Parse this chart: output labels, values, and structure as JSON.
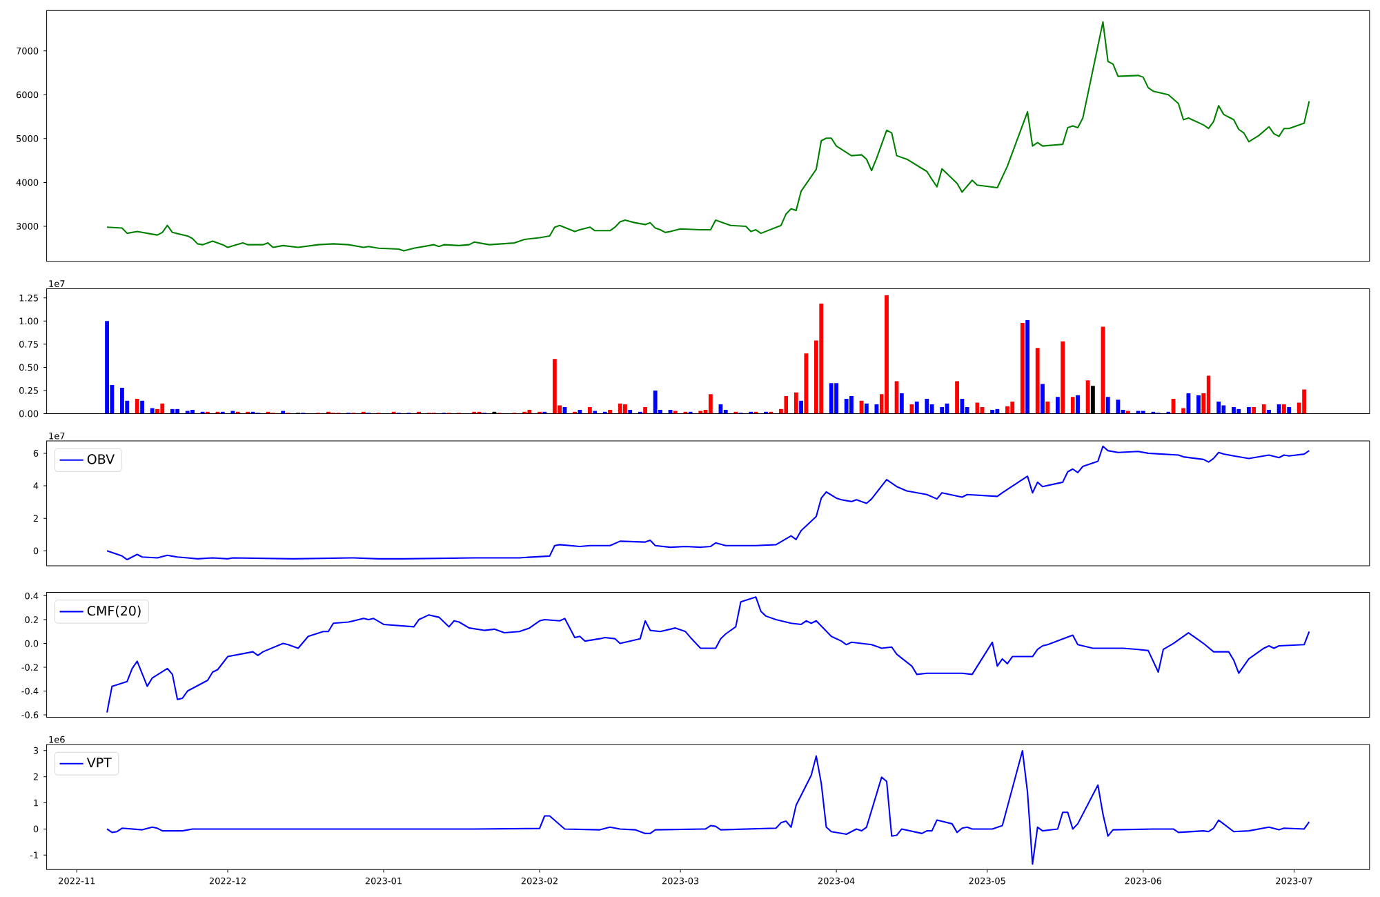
{
  "chart_data": [
    {
      "type": "line",
      "color": "#008000",
      "xlim": [
        "2022-10-26",
        "2023-07-16"
      ],
      "ylim": [
        2200,
        7920
      ],
      "yticks": [
        3000,
        4000,
        5000,
        6000,
        7000
      ],
      "tick_labels": "y",
      "x": [
        "2022-11-07",
        "2022-11-10",
        "2022-11-11",
        "2022-11-13",
        "2022-11-16",
        "2022-11-17",
        "2022-11-18",
        "2022-11-19",
        "2022-11-20",
        "2022-11-23",
        "2022-11-24",
        "2022-11-25",
        "2022-11-26",
        "2022-11-28",
        "2022-11-30",
        "2022-12-01",
        "2022-12-04",
        "2022-12-05",
        "2022-12-08",
        "2022-12-09",
        "2022-12-10",
        "2022-12-12",
        "2022-12-15",
        "2022-12-19",
        "2022-12-22",
        "2022-12-25",
        "2022-12-28",
        "2022-12-29",
        "2022-12-31",
        "2023-01-04",
        "2023-01-05",
        "2023-01-07",
        "2023-01-11",
        "2023-01-12",
        "2023-01-13",
        "2023-01-16",
        "2023-01-18",
        "2023-01-19",
        "2023-01-21",
        "2023-01-22",
        "2023-01-27",
        "2023-01-29",
        "2023-02-01",
        "2023-02-02",
        "2023-02-03",
        "2023-02-04",
        "2023-02-05",
        "2023-02-08",
        "2023-02-09",
        "2023-02-11",
        "2023-02-12",
        "2023-02-15",
        "2023-02-16",
        "2023-02-17",
        "2023-02-18",
        "2023-02-20",
        "2023-02-22",
        "2023-02-23",
        "2023-02-24",
        "2023-02-25",
        "2023-02-26",
        "2023-02-27",
        "2023-03-01",
        "2023-03-05",
        "2023-03-07",
        "2023-03-08",
        "2023-03-10",
        "2023-03-11",
        "2023-03-14",
        "2023-03-15",
        "2023-03-16",
        "2023-03-17",
        "2023-03-21",
        "2023-03-22",
        "2023-03-23",
        "2023-03-24",
        "2023-03-25",
        "2023-03-28",
        "2023-03-29",
        "2023-03-30",
        "2023-03-31",
        "2023-04-01",
        "2023-04-04",
        "2023-04-06",
        "2023-04-07",
        "2023-04-08",
        "2023-04-09",
        "2023-04-11",
        "2023-04-12",
        "2023-04-13",
        "2023-04-15",
        "2023-04-19",
        "2023-04-20",
        "2023-04-21",
        "2023-04-22",
        "2023-04-25",
        "2023-04-26",
        "2023-04-28",
        "2023-04-29",
        "2023-05-03",
        "2023-05-05",
        "2023-05-09",
        "2023-05-10",
        "2023-05-11",
        "2023-05-12",
        "2023-05-16",
        "2023-05-17",
        "2023-05-18",
        "2023-05-19",
        "2023-05-20",
        "2023-05-24",
        "2023-05-25",
        "2023-05-26",
        "2023-05-27",
        "2023-05-31",
        "2023-06-01",
        "2023-06-02",
        "2023-06-03",
        "2023-06-06",
        "2023-06-08",
        "2023-06-09",
        "2023-06-10",
        "2023-06-13",
        "2023-06-14",
        "2023-06-15",
        "2023-06-16",
        "2023-06-17",
        "2023-06-19",
        "2023-06-20",
        "2023-06-21",
        "2023-06-22",
        "2023-06-24",
        "2023-06-26",
        "2023-06-27",
        "2023-06-28",
        "2023-06-29",
        "2023-06-30",
        "2023-07-03",
        "2023-07-04"
      ],
      "values": [
        2980,
        2960,
        2840,
        2880,
        2820,
        2800,
        2860,
        3020,
        2860,
        2780,
        2720,
        2600,
        2580,
        2660,
        2580,
        2520,
        2620,
        2580,
        2580,
        2620,
        2520,
        2560,
        2520,
        2580,
        2600,
        2580,
        2520,
        2540,
        2500,
        2480,
        2440,
        2500,
        2580,
        2540,
        2580,
        2560,
        2580,
        2640,
        2600,
        2580,
        2620,
        2700,
        2740,
        2760,
        2780,
        2980,
        3020,
        2880,
        2920,
        2980,
        2900,
        2900,
        2980,
        3100,
        3140,
        3080,
        3040,
        3080,
        2960,
        2920,
        2860,
        2880,
        2940,
        2920,
        2920,
        3140,
        3060,
        3020,
        3000,
        2880,
        2920,
        2840,
        3020,
        3280,
        3400,
        3360,
        3800,
        4300,
        4950,
        5010,
        5010,
        4830,
        4610,
        4630,
        4530,
        4270,
        4550,
        5190,
        5130,
        4610,
        4530,
        4250,
        4070,
        3900,
        4310,
        3980,
        3780,
        4050,
        3940,
        3880,
        4370,
        5610,
        4830,
        4910,
        4830,
        4870,
        5250,
        5290,
        5250,
        5470,
        7660,
        6760,
        6700,
        6420,
        6440,
        6400,
        6160,
        6080,
        6000,
        5800,
        5430,
        5470,
        5310,
        5230,
        5390,
        5750,
        5550,
        5430,
        5210,
        5130,
        4930,
        5070,
        5270,
        5110,
        5050,
        5230,
        5230,
        5350,
        5850
      ]
    },
    {
      "type": "bar",
      "xlim": [
        "2022-10-26",
        "2023-07-16"
      ],
      "ylim": [
        0,
        1.35
      ],
      "tick_labels": "y",
      "annotations": [
        "1e7"
      ],
      "yticks": [
        {
          "value": 0,
          "label": "0.00"
        },
        0.25,
        {
          "value": 0.5,
          "label": "0.50"
        },
        0.75,
        {
          "value": 1,
          "label": "1.00"
        },
        1.25
      ],
      "x": [
        "2022-11-07",
        "2022-11-08",
        "2022-11-10",
        "2022-11-11",
        "2022-11-13",
        "2022-11-14",
        "2022-11-16",
        "2022-11-17",
        "2022-11-18",
        "2022-11-20",
        "2022-11-21",
        "2022-11-23",
        "2022-11-24",
        "2022-11-26",
        "2022-11-27",
        "2022-11-29",
        "2022-11-30",
        "2022-12-02",
        "2022-12-03",
        "2022-12-05",
        "2022-12-06",
        "2022-12-07",
        "2022-12-09",
        "2022-12-10",
        "2022-12-12",
        "2022-12-13",
        "2022-12-15",
        "2022-12-16",
        "2022-12-19",
        "2022-12-21",
        "2022-12-22",
        "2022-12-23",
        "2022-12-25",
        "2022-12-26",
        "2022-12-28",
        "2022-12-29",
        "2022-12-31",
        "2023-01-03",
        "2023-01-04",
        "2023-01-06",
        "2023-01-08",
        "2023-01-10",
        "2023-01-11",
        "2023-01-13",
        "2023-01-14",
        "2023-01-16",
        "2023-01-19",
        "2023-01-20",
        "2023-01-21",
        "2023-01-23",
        "2023-01-24",
        "2023-01-27",
        "2023-01-29",
        "2023-01-30",
        "2023-02-01",
        "2023-02-02",
        "2023-02-04",
        "2023-02-05",
        "2023-02-06",
        "2023-02-08",
        "2023-02-09",
        "2023-02-11",
        "2023-02-12",
        "2023-02-14",
        "2023-02-15",
        "2023-02-17",
        "2023-02-18",
        "2023-02-19",
        "2023-02-21",
        "2023-02-22",
        "2023-02-24",
        "2023-02-25",
        "2023-02-27",
        "2023-02-28",
        "2023-03-02",
        "2023-03-03",
        "2023-03-05",
        "2023-03-06",
        "2023-03-07",
        "2023-03-09",
        "2023-03-10",
        "2023-03-12",
        "2023-03-13",
        "2023-03-15",
        "2023-03-16",
        "2023-03-18",
        "2023-03-19",
        "2023-03-21",
        "2023-03-22",
        "2023-03-24",
        "2023-03-25",
        "2023-03-26",
        "2023-03-28",
        "2023-03-29",
        "2023-03-31",
        "2023-04-01",
        "2023-04-03",
        "2023-04-04",
        "2023-04-06",
        "2023-04-07",
        "2023-04-09",
        "2023-04-10",
        "2023-04-11",
        "2023-04-13",
        "2023-04-14",
        "2023-04-16",
        "2023-04-17",
        "2023-04-19",
        "2023-04-20",
        "2023-04-22",
        "2023-04-23",
        "2023-04-25",
        "2023-04-26",
        "2023-04-27",
        "2023-04-29",
        "2023-04-30",
        "2023-05-02",
        "2023-05-03",
        "2023-05-05",
        "2023-05-06",
        "2023-05-08",
        "2023-05-09",
        "2023-05-11",
        "2023-05-12",
        "2023-05-13",
        "2023-05-15",
        "2023-05-16",
        "2023-05-18",
        "2023-05-19",
        "2023-05-21",
        "2023-05-22",
        "2023-05-24",
        "2023-05-25",
        "2023-05-27",
        "2023-05-28",
        "2023-05-29",
        "2023-05-31",
        "2023-06-01",
        "2023-06-03",
        "2023-06-04",
        "2023-06-06",
        "2023-06-07",
        "2023-06-09",
        "2023-06-10",
        "2023-06-12",
        "2023-06-13",
        "2023-06-14",
        "2023-06-16",
        "2023-06-17",
        "2023-06-19",
        "2023-06-20",
        "2023-06-22",
        "2023-06-23",
        "2023-06-25",
        "2023-06-26",
        "2023-06-28",
        "2023-06-29",
        "2023-06-30",
        "2023-07-02",
        "2023-07-03"
      ],
      "values": [
        1.0,
        0.31,
        0.28,
        0.14,
        0.16,
        0.14,
        0.06,
        0.05,
        0.11,
        0.05,
        0.05,
        0.03,
        0.04,
        0.02,
        0.02,
        0.02,
        0.02,
        0.03,
        0.02,
        0.02,
        0.02,
        0.01,
        0.02,
        0.01,
        0.03,
        0.01,
        0.01,
        0.01,
        0.01,
        0.02,
        0.01,
        0.01,
        0.01,
        0.01,
        0.02,
        0.01,
        0.01,
        0.02,
        0.01,
        0.01,
        0.02,
        0.01,
        0.01,
        0.01,
        0.01,
        0.01,
        0.02,
        0.02,
        0.01,
        0.02,
        0.01,
        0.01,
        0.02,
        0.04,
        0.02,
        0.02,
        0.59,
        0.09,
        0.07,
        0.02,
        0.04,
        0.07,
        0.03,
        0.02,
        0.04,
        0.11,
        0.1,
        0.04,
        0.02,
        0.07,
        0.25,
        0.04,
        0.04,
        0.03,
        0.02,
        0.02,
        0.03,
        0.04,
        0.21,
        0.1,
        0.04,
        0.02,
        0.01,
        0.02,
        0.02,
        0.02,
        0.02,
        0.05,
        0.19,
        0.23,
        0.14,
        0.65,
        0.79,
        1.19,
        0.33,
        0.33,
        0.16,
        0.19,
        0.14,
        0.11,
        0.1,
        0.21,
        1.28,
        0.35,
        0.22,
        0.1,
        0.13,
        0.16,
        0.1,
        0.07,
        0.11,
        0.35,
        0.16,
        0.07,
        0.12,
        0.07,
        0.04,
        0.05,
        0.08,
        0.13,
        0.98,
        1.01,
        0.71,
        0.32,
        0.13,
        0.18,
        0.78,
        0.18,
        0.2,
        0.36,
        0.3,
        0.94,
        0.18,
        0.15,
        0.04,
        0.03,
        0.03,
        0.03,
        0.02,
        0.01,
        0.02,
        0.16,
        0.06,
        0.22,
        0.2,
        0.22,
        0.41,
        0.13,
        0.09,
        0.07,
        0.05,
        0.07,
        0.07,
        0.1,
        0.04,
        0.1,
        0.1,
        0.07,
        0.12,
        0.26
      ],
      "colors": [
        "#0000ff",
        "#0000ff",
        "#0000ff",
        "#0000ff",
        "#ff0000",
        "#0000ff",
        "#0000ff",
        "#ff0000",
        "#ff0000",
        "#0000ff",
        "#0000ff",
        "#0000ff",
        "#0000ff",
        "#0000ff",
        "#ff0000",
        "#ff0000",
        "#0000ff",
        "#0000ff",
        "#ff0000",
        "#ff0000",
        "#0000ff",
        "#0000ff",
        "#ff0000",
        "#ff0000",
        "#0000ff",
        "#ff0000",
        "#000000",
        "#0000ff",
        "#ff0000",
        "#ff0000",
        "#ff0000",
        "#ff0000",
        "#0000ff",
        "#ff0000",
        "#ff0000",
        "#0000ff",
        "#ff0000",
        "#ff0000",
        "#0000ff",
        "#0000ff",
        "#ff0000",
        "#ff0000",
        "#ff0000",
        "#0000ff",
        "#ff0000",
        "#ff0000",
        "#ff0000",
        "#ff0000",
        "#0000ff",
        "#000000",
        "#ff0000",
        "#ff0000",
        "#ff0000",
        "#ff0000",
        "#ff0000",
        "#0000ff",
        "#ff0000",
        "#ff0000",
        "#0000ff",
        "#ff0000",
        "#0000ff",
        "#ff0000",
        "#0000ff",
        "#0000ff",
        "#ff0000",
        "#ff0000",
        "#ff0000",
        "#0000ff",
        "#0000ff",
        "#ff0000",
        "#0000ff",
        "#0000ff",
        "#0000ff",
        "#ff0000",
        "#ff0000",
        "#0000ff",
        "#ff0000",
        "#ff0000",
        "#ff0000",
        "#0000ff",
        "#0000ff",
        "#ff0000",
        "#0000ff",
        "#0000ff",
        "#ff0000",
        "#0000ff",
        "#ff0000",
        "#ff0000",
        "#ff0000",
        "#ff0000",
        "#0000ff",
        "#ff0000",
        "#ff0000",
        "#ff0000",
        "#0000ff",
        "#0000ff",
        "#0000ff",
        "#0000ff",
        "#ff0000",
        "#0000ff",
        "#0000ff",
        "#ff0000",
        "#ff0000",
        "#ff0000",
        "#0000ff",
        "#ff0000",
        "#0000ff",
        "#0000ff",
        "#0000ff",
        "#0000ff",
        "#0000ff",
        "#ff0000",
        "#0000ff",
        "#0000ff",
        "#ff0000",
        "#ff0000",
        "#0000ff",
        "#0000ff",
        "#ff0000",
        "#ff0000",
        "#ff0000",
        "#0000ff",
        "#ff0000",
        "#0000ff",
        "#ff0000",
        "#0000ff",
        "#ff0000",
        "#ff0000",
        "#0000ff",
        "#ff0000",
        "#000000",
        "#ff0000",
        "#0000ff",
        "#0000ff",
        "#0000ff",
        "#ff0000",
        "#0000ff",
        "#0000ff",
        "#0000ff",
        "#0000ff",
        "#0000ff",
        "#ff0000",
        "#ff0000",
        "#0000ff",
        "#0000ff",
        "#ff0000",
        "#ff0000",
        "#0000ff",
        "#0000ff",
        "#0000ff",
        "#0000ff",
        "#0000ff",
        "#ff0000",
        "#ff0000",
        "#0000ff",
        "#0000ff",
        "#ff0000",
        "#0000ff",
        "#ff0000",
        "#ff0000"
      ]
    },
    {
      "type": "line",
      "xlim": [
        "2022-10-26",
        "2023-07-16"
      ],
      "ylim": [
        -0.92,
        6.76
      ],
      "yticks": [
        0,
        2,
        4,
        6
      ],
      "tick_labels": "y",
      "legend": "top left",
      "annotations": [
        "1e7"
      ],
      "x": [
        "2022-11-07",
        "2022-11-10",
        "2022-11-11",
        "2022-11-13",
        "2022-11-14",
        "2022-11-17",
        "2022-11-19",
        "2022-11-21",
        "2022-11-23",
        "2022-11-25",
        "2022-11-28",
        "2022-12-01",
        "2022-12-02",
        "2022-12-14",
        "2022-12-26",
        "2022-12-31",
        "2023-01-05",
        "2023-01-19",
        "2023-01-28",
        "2023-02-03",
        "2023-02-04",
        "2023-02-05",
        "2023-02-09",
        "2023-02-11",
        "2023-02-15",
        "2023-02-17",
        "2023-02-22",
        "2023-02-23",
        "2023-02-24",
        "2023-02-27",
        "2023-03-02",
        "2023-03-05",
        "2023-03-07",
        "2023-03-08",
        "2023-03-10",
        "2023-03-16",
        "2023-03-20",
        "2023-03-23",
        "2023-03-24",
        "2023-03-25",
        "2023-03-28",
        "2023-03-29",
        "2023-03-30",
        "2023-04-01",
        "2023-04-02",
        "2023-04-04",
        "2023-04-05",
        "2023-04-07",
        "2023-04-08",
        "2023-04-11",
        "2023-04-13",
        "2023-04-15",
        "2023-04-19",
        "2023-04-21",
        "2023-04-22",
        "2023-04-26",
        "2023-04-27",
        "2023-05-03",
        "2023-05-04",
        "2023-05-09",
        "2023-05-10",
        "2023-05-11",
        "2023-05-12",
        "2023-05-16",
        "2023-05-17",
        "2023-05-18",
        "2023-05-19",
        "2023-05-20",
        "2023-05-23",
        "2023-05-24",
        "2023-05-25",
        "2023-05-27",
        "2023-05-31",
        "2023-06-02",
        "2023-06-08",
        "2023-06-09",
        "2023-06-13",
        "2023-06-14",
        "2023-06-15",
        "2023-06-16",
        "2023-06-17",
        "2023-06-19",
        "2023-06-22",
        "2023-06-26",
        "2023-06-28",
        "2023-06-29",
        "2023-06-30",
        "2023-07-03",
        "2023-07-04"
      ],
      "series": [
        {
          "name": "OBV",
          "color": "#0000ff",
          "values": [
            0,
            -0.32,
            -0.54,
            -0.22,
            -0.38,
            -0.43,
            -0.27,
            -0.38,
            -0.43,
            -0.49,
            -0.43,
            -0.49,
            -0.43,
            -0.49,
            -0.43,
            -0.49,
            -0.49,
            -0.43,
            -0.43,
            -0.32,
            0.32,
            0.38,
            0.27,
            0.32,
            0.32,
            0.59,
            0.54,
            0.65,
            0.32,
            0.22,
            0.27,
            0.22,
            0.27,
            0.49,
            0.32,
            0.32,
            0.38,
            0.92,
            0.7,
            1.24,
            2.11,
            3.24,
            3.62,
            3.24,
            3.14,
            3.03,
            3.14,
            2.92,
            3.19,
            4.38,
            3.95,
            3.68,
            3.46,
            3.19,
            3.57,
            3.3,
            3.46,
            3.35,
            3.57,
            4.59,
            3.57,
            4.22,
            3.95,
            4.22,
            4.86,
            5.03,
            4.81,
            5.19,
            5.51,
            6.43,
            6.16,
            6.05,
            6.11,
            6.0,
            5.89,
            5.78,
            5.62,
            5.46,
            5.68,
            6.05,
            5.95,
            5.84,
            5.68,
            5.89,
            5.73,
            5.89,
            5.84,
            5.95,
            6.16
          ]
        }
      ]
    },
    {
      "type": "line",
      "xlim": [
        "2022-10-26",
        "2023-07-16"
      ],
      "ylim": [
        -0.62,
        0.43
      ],
      "yticks": [
        -0.6,
        -0.4,
        -0.2,
        {
          "value": 0,
          "label": "0.0"
        },
        0.2,
        0.4
      ],
      "tick_labels": "y",
      "legend": "top left",
      "x": [
        "2022-11-07",
        "2022-11-08",
        "2022-11-11",
        "2022-11-12",
        "2022-11-13",
        "2022-11-15",
        "2022-11-16",
        "2022-11-19",
        "2022-11-20",
        "2022-11-21",
        "2022-11-22",
        "2022-11-23",
        "2022-11-27",
        "2022-11-28",
        "2022-11-29",
        "2022-12-01",
        "2022-12-06",
        "2022-12-07",
        "2022-12-08",
        "2022-12-12",
        "2022-12-13",
        "2022-12-15",
        "2022-12-17",
        "2022-12-20",
        "2022-12-21",
        "2022-12-22",
        "2022-12-25",
        "2022-12-28",
        "2022-12-29",
        "2022-12-30",
        "2023-01-01",
        "2023-01-07",
        "2023-01-08",
        "2023-01-10",
        "2023-01-12",
        "2023-01-14",
        "2023-01-15",
        "2023-01-16",
        "2023-01-18",
        "2023-01-21",
        "2023-01-23",
        "2023-01-25",
        "2023-01-28",
        "2023-01-30",
        "2023-02-01",
        "2023-02-02",
        "2023-02-05",
        "2023-02-06",
        "2023-02-08",
        "2023-02-09",
        "2023-02-10",
        "2023-02-13",
        "2023-02-14",
        "2023-02-16",
        "2023-02-17",
        "2023-02-21",
        "2023-02-22",
        "2023-02-23",
        "2023-02-25",
        "2023-02-28",
        "2023-03-02",
        "2023-03-03",
        "2023-03-05",
        "2023-03-08",
        "2023-03-09",
        "2023-03-10",
        "2023-03-12",
        "2023-03-13",
        "2023-03-16",
        "2023-03-17",
        "2023-03-18",
        "2023-03-20",
        "2023-03-23",
        "2023-03-25",
        "2023-03-26",
        "2023-03-27",
        "2023-03-28",
        "2023-03-31",
        "2023-04-02",
        "2023-04-03",
        "2023-04-04",
        "2023-04-08",
        "2023-04-10",
        "2023-04-12",
        "2023-04-13",
        "2023-04-16",
        "2023-04-17",
        "2023-04-19",
        "2023-04-26",
        "2023-04-28",
        "2023-05-02",
        "2023-05-03",
        "2023-05-04",
        "2023-05-05",
        "2023-05-06",
        "2023-05-10",
        "2023-05-11",
        "2023-05-12",
        "2023-05-13",
        "2023-05-18",
        "2023-05-19",
        "2023-05-22",
        "2023-05-28",
        "2023-05-31",
        "2023-06-02",
        "2023-06-04",
        "2023-06-05",
        "2023-06-07",
        "2023-06-10",
        "2023-06-12",
        "2023-06-13",
        "2023-06-15",
        "2023-06-18",
        "2023-06-19",
        "2023-06-20",
        "2023-06-22",
        "2023-06-25",
        "2023-06-26",
        "2023-06-27",
        "2023-06-28",
        "2023-07-03",
        "2023-07-04"
      ],
      "series": [
        {
          "name": "CMF(20)",
          "color": "#0000ff",
          "values": [
            -0.58,
            -0.36,
            -0.32,
            -0.21,
            -0.15,
            -0.36,
            -0.29,
            -0.21,
            -0.26,
            -0.47,
            -0.46,
            -0.4,
            -0.31,
            -0.24,
            -0.22,
            -0.11,
            -0.07,
            -0.1,
            -0.07,
            0.0,
            -0.01,
            -0.04,
            0.06,
            0.1,
            0.1,
            0.17,
            0.18,
            0.21,
            0.2,
            0.21,
            0.16,
            0.14,
            0.2,
            0.24,
            0.22,
            0.14,
            0.19,
            0.18,
            0.13,
            0.11,
            0.12,
            0.09,
            0.1,
            0.13,
            0.19,
            0.2,
            0.19,
            0.21,
            0.05,
            0.06,
            0.02,
            0.04,
            0.05,
            0.04,
            0.0,
            0.04,
            0.19,
            0.11,
            0.1,
            0.13,
            0.1,
            0.05,
            -0.04,
            -0.04,
            0.04,
            0.08,
            0.14,
            0.35,
            0.39,
            0.27,
            0.23,
            0.2,
            0.17,
            0.16,
            0.19,
            0.17,
            0.19,
            0.06,
            0.02,
            -0.01,
            0.01,
            -0.01,
            -0.04,
            -0.03,
            -0.09,
            -0.19,
            -0.26,
            -0.25,
            -0.25,
            -0.26,
            0.01,
            -0.19,
            -0.13,
            -0.17,
            -0.11,
            -0.11,
            -0.05,
            -0.02,
            -0.01,
            0.07,
            -0.01,
            -0.04,
            -0.04,
            -0.05,
            -0.06,
            -0.24,
            -0.05,
            0.0,
            0.09,
            0.03,
            0.0,
            -0.07,
            -0.07,
            -0.14,
            -0.25,
            -0.13,
            -0.04,
            -0.02,
            -0.04,
            -0.02,
            -0.01,
            0.1
          ]
        }
      ]
    },
    {
      "type": "line",
      "xlim": [
        "2022-10-26",
        "2023-07-16"
      ],
      "ylim": [
        -1.55,
        3.23
      ],
      "yticks": [
        -1,
        0,
        1,
        2,
        3
      ],
      "legend": "top left",
      "annotations": [
        "1e6"
      ],
      "xticks": [
        {
          "value": "2022-11-01",
          "label": "2022-11"
        },
        {
          "value": "2022-12-01",
          "label": "2022-12"
        },
        {
          "value": "2023-01-01",
          "label": "2023-01"
        },
        {
          "value": "2023-02-01",
          "label": "2023-02"
        },
        {
          "value": "2023-03-01",
          "label": "2023-03"
        },
        {
          "value": "2023-04-01",
          "label": "2023-04"
        },
        {
          "value": "2023-05-01",
          "label": "2023-05"
        },
        {
          "value": "2023-06-01",
          "label": "2023-06"
        },
        {
          "value": "2023-07-01",
          "label": "2023-07"
        }
      ],
      "x": [
        "2022-11-07",
        "2022-11-08",
        "2022-11-09",
        "2022-11-10",
        "2022-11-14",
        "2022-11-16",
        "2022-11-17",
        "2022-11-18",
        "2022-11-22",
        "2022-11-24",
        "2022-12-08",
        "2023-01-04",
        "2023-01-19",
        "2023-02-01",
        "2023-02-02",
        "2023-02-03",
        "2023-02-06",
        "2023-02-13",
        "2023-02-15",
        "2023-02-17",
        "2023-02-20",
        "2023-02-22",
        "2023-02-23",
        "2023-02-24",
        "2023-03-06",
        "2023-03-07",
        "2023-03-08",
        "2023-03-09",
        "2023-03-20",
        "2023-03-21",
        "2023-03-22",
        "2023-03-23",
        "2023-03-24",
        "2023-03-27",
        "2023-03-28",
        "2023-03-29",
        "2023-03-30",
        "2023-03-31",
        "2023-04-03",
        "2023-04-05",
        "2023-04-06",
        "2023-04-07",
        "2023-04-10",
        "2023-04-11",
        "2023-04-12",
        "2023-04-13",
        "2023-04-14",
        "2023-04-18",
        "2023-04-19",
        "2023-04-20",
        "2023-04-21",
        "2023-04-24",
        "2023-04-25",
        "2023-04-26",
        "2023-04-27",
        "2023-04-28",
        "2023-05-02",
        "2023-05-04",
        "2023-05-08",
        "2023-05-09",
        "2023-05-10",
        "2023-05-11",
        "2023-05-12",
        "2023-05-15",
        "2023-05-16",
        "2023-05-17",
        "2023-05-18",
        "2023-05-19",
        "2023-05-22",
        "2023-05-23",
        "2023-05-24",
        "2023-05-25",
        "2023-05-26",
        "2023-06-03",
        "2023-06-07",
        "2023-06-08",
        "2023-06-13",
        "2023-06-14",
        "2023-06-15",
        "2023-06-16",
        "2023-06-19",
        "2023-06-22",
        "2023-06-26",
        "2023-06-28",
        "2023-06-29",
        "2023-07-03",
        "2023-07-04"
      ],
      "series": [
        {
          "name": "VPT",
          "color": "#0000ff",
          "values": [
            0,
            -0.13,
            -0.1,
            0.03,
            -0.03,
            0.07,
            0.03,
            -0.07,
            -0.07,
            0,
            0,
            0,
            0,
            0.02,
            0.5,
            0.5,
            0,
            -0.03,
            0.07,
            0,
            -0.03,
            -0.17,
            -0.17,
            -0.03,
            0,
            0.13,
            0.1,
            -0.03,
            0.03,
            0.24,
            0.3,
            0.07,
            0.91,
            2.05,
            2.79,
            1.75,
            0.07,
            -0.1,
            -0.2,
            0,
            -0.07,
            0.07,
            1.98,
            1.82,
            -0.27,
            -0.24,
            0,
            -0.17,
            -0.07,
            -0.07,
            0.34,
            0.2,
            -0.13,
            0.03,
            0.07,
            0,
            0,
            0.13,
            2.99,
            1.41,
            -1.34,
            0.07,
            -0.07,
            0,
            0.64,
            0.64,
            0,
            0.2,
            1.31,
            1.68,
            0.57,
            -0.27,
            -0.03,
            0,
            0,
            -0.13,
            -0.07,
            -0.1,
            0.03,
            0.34,
            -0.1,
            -0.07,
            0.07,
            -0.03,
            0.03,
            0,
            0.27
          ]
        }
      ]
    }
  ]
}
